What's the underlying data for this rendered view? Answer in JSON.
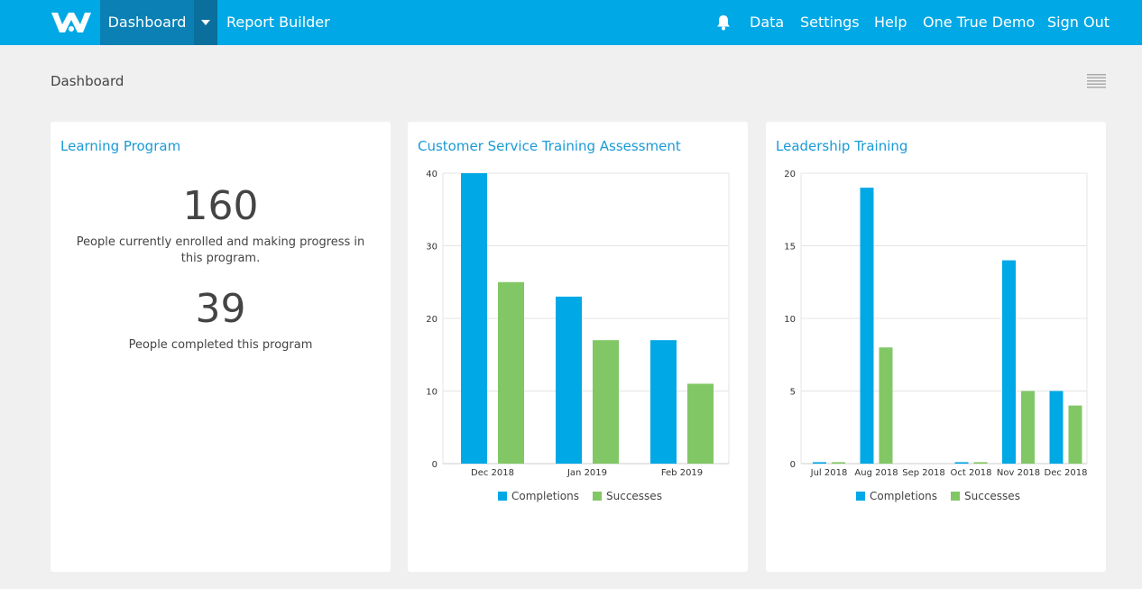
{
  "nav": {
    "dashboard": "Dashboard",
    "report_builder": "Report Builder",
    "data": "Data",
    "settings": "Settings",
    "help": "Help",
    "user": "One True Demo",
    "sign_out": "Sign Out",
    "icons": [
      "logo-w",
      "chevron-down-icon",
      "bell-icon"
    ]
  },
  "page": {
    "title": "Dashboard",
    "icon": "list-view-icon"
  },
  "colors": {
    "header": "#00a8e6",
    "completions": "#00a8e6",
    "successes": "#82c765",
    "title": "#1a9ad6"
  },
  "learning_program": {
    "title": "Learning Program",
    "enrolled_count": "160",
    "enrolled_caption": "People currently enrolled and making progress in this program.",
    "completed_count": "39",
    "completed_caption": "People completed this program"
  },
  "chart_data": [
    {
      "type": "bar",
      "title": "Customer Service Training Assessment",
      "categories": [
        "Dec 2018",
        "Jan 2019",
        "Feb 2019"
      ],
      "series": [
        {
          "name": "Completions",
          "values": [
            40,
            23,
            17
          ]
        },
        {
          "name": "Successes",
          "values": [
            25,
            17,
            11
          ]
        }
      ],
      "ylim": [
        0,
        40
      ],
      "yticks": [
        0,
        10,
        20,
        30,
        40
      ],
      "grid": true,
      "legend": "bottom"
    },
    {
      "type": "bar",
      "title": "Leadership Training",
      "categories": [
        "Jul 2018",
        "Aug 2018",
        "Sep 2018",
        "Oct 2018",
        "Nov 2018",
        "Dec 2018"
      ],
      "series": [
        {
          "name": "Completions",
          "values": [
            0.1,
            19,
            0,
            0.1,
            14,
            5
          ]
        },
        {
          "name": "Successes",
          "values": [
            0.1,
            8,
            0,
            0.1,
            5,
            4
          ]
        }
      ],
      "ylim": [
        0,
        20
      ],
      "yticks": [
        0,
        5,
        10,
        15,
        20
      ],
      "grid": true,
      "legend": "bottom"
    }
  ]
}
